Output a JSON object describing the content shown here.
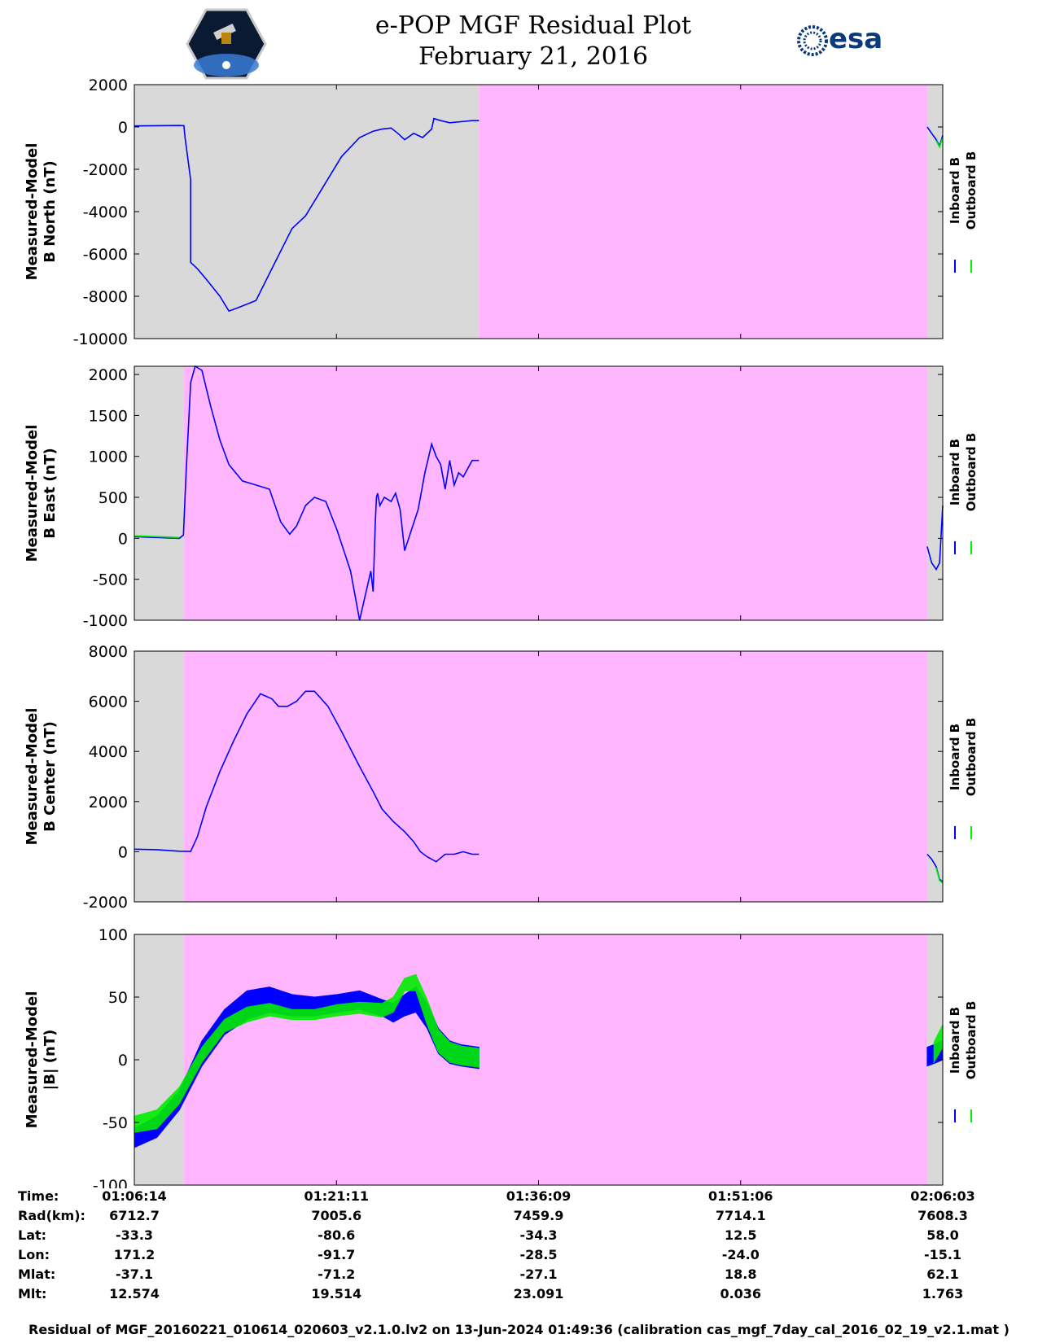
{
  "header": {
    "title_line1": "e-POP MGF Residual Plot",
    "title_line2": "February 21, 2016",
    "logo_left": "cassiope-mission-logo",
    "logo_right_text": "esa"
  },
  "colors": {
    "inboard": "#0000ff",
    "outboard": "#00ee00",
    "grey_region": "#d9d9d9",
    "pink_region": "#ffb6ff"
  },
  "chart_data": [
    {
      "type": "line",
      "ylabel_line1": "Measured-Model",
      "ylabel_line2": "B North (nT)",
      "ylim": [
        -10000,
        2000
      ],
      "yticks": [
        2000,
        0,
        -2000,
        -4000,
        -6000,
        -8000,
        -10000
      ],
      "x_range_seconds": [
        0,
        3589
      ],
      "legend": [
        "Inboard B",
        "Outboard B"
      ],
      "background_regions": [
        {
          "x0": 0,
          "x1": 1530,
          "color": "grey"
        },
        {
          "x0": 1530,
          "x1": 3520,
          "color": "pink"
        },
        {
          "x0": 3520,
          "x1": 3589,
          "color": "grey"
        }
      ],
      "series": [
        {
          "name": "Inboard B",
          "x": [
            0,
            100,
            200,
            220,
            225,
            250,
            250,
            280,
            320,
            380,
            420,
            470,
            540,
            620,
            700,
            760,
            840,
            920,
            1000,
            1060,
            1100,
            1140,
            1170,
            1200,
            1240,
            1280,
            1320,
            1330,
            1360,
            1400,
            1450,
            1500,
            1530
          ],
          "y": [
            50,
            60,
            70,
            60,
            -500,
            -2500,
            -6400,
            -6700,
            -7200,
            -8000,
            -8700,
            -8500,
            -8200,
            -6500,
            -4800,
            -4200,
            -2800,
            -1400,
            -500,
            -200,
            -100,
            -50,
            -300,
            -600,
            -300,
            -500,
            -100,
            400,
            300,
            200,
            250,
            300,
            300
          ]
        },
        {
          "name": "Inboard B",
          "x": [
            3520,
            3540,
            3560,
            3575,
            3589
          ],
          "y": [
            0,
            -300,
            -600,
            -900,
            -400
          ]
        },
        {
          "name": "Outboard B",
          "x": [
            3560,
            3575,
            3589
          ],
          "y": [
            -650,
            -950,
            -500
          ]
        }
      ]
    },
    {
      "type": "line",
      "ylabel_line1": "Measured-Model",
      "ylabel_line2": "B East (nT)",
      "ylim": [
        -1000,
        2100
      ],
      "yticks": [
        2000,
        1500,
        1000,
        500,
        0,
        -500,
        -1000
      ],
      "x_range_seconds": [
        0,
        3589
      ],
      "legend": [
        "Inboard B",
        "Outboard B"
      ],
      "background_regions": [
        {
          "x0": 0,
          "x1": 218,
          "color": "grey"
        },
        {
          "x0": 218,
          "x1": 3520,
          "color": "pink"
        },
        {
          "x0": 3520,
          "x1": 3589,
          "color": "grey"
        }
      ],
      "series": [
        {
          "name": "Inboard B",
          "x": [
            0,
            100,
            200,
            218,
            230,
            250,
            270,
            300,
            340,
            380,
            420,
            480,
            540,
            600,
            650,
            690,
            720,
            760,
            800,
            850,
            900,
            960,
            1000,
            1050,
            1060,
            1070,
            1075,
            1080,
            1090,
            1110,
            1140,
            1160,
            1180,
            1200,
            1230,
            1260,
            1290,
            1320,
            1340,
            1360,
            1380,
            1400,
            1420,
            1440,
            1460,
            1480,
            1500,
            1530
          ],
          "y": [
            20,
            10,
            0,
            40,
            800,
            1900,
            2100,
            2050,
            1600,
            1200,
            900,
            700,
            650,
            600,
            200,
            50,
            150,
            400,
            500,
            450,
            100,
            -400,
            -1000,
            -400,
            -650,
            200,
            500,
            550,
            400,
            500,
            450,
            550,
            350,
            -150,
            100,
            350,
            800,
            1150,
            1000,
            900,
            600,
            950,
            650,
            800,
            750,
            850,
            950,
            950
          ]
        },
        {
          "name": "Inboard B",
          "x": [
            3520,
            3540,
            3560,
            3575,
            3589
          ],
          "y": [
            -100,
            -300,
            -380,
            -300,
            400
          ]
        },
        {
          "name": "Outboard B",
          "x": [
            0,
            100,
            200
          ],
          "y": [
            30,
            20,
            10
          ]
        }
      ]
    },
    {
      "type": "line",
      "ylabel_line1": "Measured-Model",
      "ylabel_line2": "B Center (nT)",
      "ylim": [
        -2000,
        8000
      ],
      "yticks": [
        8000,
        6000,
        4000,
        2000,
        0,
        -2000
      ],
      "x_range_seconds": [
        0,
        3589
      ],
      "legend": [
        "Inboard B",
        "Outboard B"
      ],
      "background_regions": [
        {
          "x0": 0,
          "x1": 218,
          "color": "grey"
        },
        {
          "x0": 218,
          "x1": 3520,
          "color": "pink"
        },
        {
          "x0": 3520,
          "x1": 3589,
          "color": "grey"
        }
      ],
      "series": [
        {
          "name": "Inboard B",
          "x": [
            0,
            100,
            200,
            250,
            280,
            320,
            380,
            440,
            500,
            560,
            610,
            640,
            680,
            720,
            760,
            800,
            860,
            920,
            1000,
            1060,
            1100,
            1150,
            1200,
            1240,
            1270,
            1300,
            1340,
            1380,
            1420,
            1460,
            1500,
            1530
          ],
          "y": [
            100,
            80,
            20,
            10,
            600,
            1800,
            3200,
            4400,
            5500,
            6300,
            6100,
            5800,
            5800,
            6000,
            6400,
            6400,
            5800,
            4800,
            3400,
            2400,
            1700,
            1200,
            800,
            400,
            0,
            -200,
            -400,
            -100,
            -100,
            0,
            -100,
            -100
          ]
        },
        {
          "name": "Inboard B",
          "x": [
            3520,
            3540,
            3560,
            3575,
            3589
          ],
          "y": [
            -100,
            -300,
            -600,
            -1100,
            -1200
          ]
        },
        {
          "name": "Outboard B",
          "x": [
            3560,
            3575,
            3589
          ],
          "y": [
            -650,
            -1150,
            -1250
          ]
        }
      ]
    },
    {
      "type": "line",
      "ylabel_line1": "Measured-Model",
      "ylabel_line2": "|B| (nT)",
      "ylim": [
        -100,
        100
      ],
      "yticks": [
        100,
        50,
        0,
        -50,
        -100
      ],
      "x_range_seconds": [
        0,
        3589
      ],
      "legend": [
        "Inboard B",
        "Outboard B"
      ],
      "background_regions": [
        {
          "x0": 0,
          "x1": 218,
          "color": "grey"
        },
        {
          "x0": 218,
          "x1": 3520,
          "color": "pink"
        },
        {
          "x0": 3520,
          "x1": 3589,
          "color": "grey"
        }
      ],
      "series": [
        {
          "name": "Inboard B",
          "band": true,
          "x": [
            0,
            100,
            200,
            300,
            400,
            500,
            600,
            700,
            800,
            900,
            1000,
            1100,
            1150,
            1200,
            1250,
            1300,
            1350,
            1400,
            1450,
            1530
          ],
          "upper": [
            -55,
            -45,
            -25,
            15,
            40,
            55,
            58,
            52,
            50,
            52,
            55,
            48,
            45,
            52,
            58,
            45,
            25,
            15,
            12,
            10
          ],
          "lower": [
            -70,
            -62,
            -40,
            -5,
            20,
            32,
            38,
            35,
            35,
            38,
            40,
            35,
            30,
            35,
            38,
            25,
            5,
            -3,
            -5,
            -7
          ]
        },
        {
          "name": "Outboard B",
          "band": true,
          "x": [
            0,
            100,
            200,
            300,
            400,
            500,
            600,
            700,
            800,
            900,
            1000,
            1100,
            1150,
            1200,
            1250,
            1300,
            1350,
            1400,
            1450,
            1530
          ],
          "upper": [
            -45,
            -40,
            -22,
            10,
            32,
            42,
            45,
            40,
            40,
            44,
            46,
            45,
            50,
            65,
            68,
            48,
            24,
            14,
            11,
            9
          ],
          "lower": [
            -58,
            -55,
            -35,
            -2,
            22,
            30,
            35,
            32,
            32,
            35,
            37,
            34,
            38,
            55,
            55,
            28,
            6,
            -2,
            -4,
            -6
          ]
        },
        {
          "name": "Inboard B",
          "band": true,
          "x": [
            3520,
            3550,
            3589
          ],
          "upper": [
            10,
            12,
            15
          ],
          "lower": [
            -5,
            -3,
            0
          ]
        },
        {
          "name": "Outboard B",
          "band": true,
          "x": [
            3550,
            3589
          ],
          "upper": [
            14,
            28
          ],
          "lower": [
            -2,
            10
          ]
        }
      ]
    }
  ],
  "x_axis_table": {
    "row_labels": [
      "Time:",
      "Rad(km):",
      "Lat:",
      "Lon:",
      "Mlat:",
      "Mlt:"
    ],
    "columns": [
      [
        "01:06:14",
        "6712.7",
        "-33.3",
        "171.2",
        "-37.1",
        "12.574"
      ],
      [
        "01:21:11",
        "7005.6",
        "-80.6",
        "-91.7",
        "-71.2",
        "19.514"
      ],
      [
        "01:36:09",
        "7459.9",
        "-34.3",
        "-28.5",
        "-27.1",
        "23.091"
      ],
      [
        "01:51:06",
        "7714.1",
        "12.5",
        "-24.0",
        "18.8",
        "0.036"
      ],
      [
        "02:06:03",
        "7608.3",
        "58.0",
        "-15.1",
        "62.1",
        "1.763"
      ]
    ]
  },
  "caption": "Residual of MGF_20160221_010614_020603_v2.1.0.lv2 on 13-Jun-2024 01:49:36 (calibration cas_mgf_7day_cal_2016_02_19_v2.1.mat )"
}
